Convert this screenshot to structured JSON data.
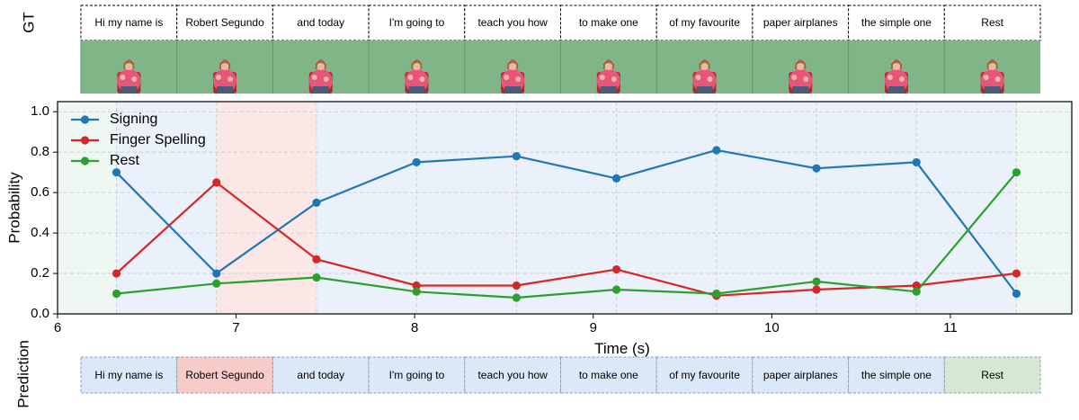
{
  "gt_label": "GT",
  "prediction_label": "Prediction",
  "segments": [
    "Hi my name is",
    "Robert Segundo",
    "and today",
    "I'm going to",
    "teach you how",
    "to make one",
    "of my favourite",
    "paper airplanes",
    "the simple one",
    "Rest"
  ],
  "predicted_classes": [
    "signing",
    "fingerspelling",
    "signing",
    "signing",
    "signing",
    "signing",
    "signing",
    "signing",
    "signing",
    "rest"
  ],
  "colors": {
    "signing": "#1f77b4",
    "fingerspelling": "#d62728",
    "rest": "#2ca02c",
    "pred_signing_fill": "#dae8f8",
    "pred_fingerspelling_fill": "#f7cbc7",
    "pred_rest_fill": "#d5e8d4",
    "bg_signing": "#eaf1fb",
    "bg_fingerspelling": "#fbe7e5",
    "bg_rest": "#eef7f2",
    "video_green": "#76b07d",
    "shirt_pink": "#e8557a"
  },
  "chart_data": {
    "type": "line",
    "title": "",
    "xlabel": "Time (s)",
    "ylabel": "Probability",
    "xlim": [
      6.0,
      11.68
    ],
    "ylim": [
      0.0,
      1.05
    ],
    "xticks": [
      6,
      7,
      8,
      9,
      10,
      11
    ],
    "yticks": [
      0.0,
      0.2,
      0.4,
      0.6,
      0.8,
      1.0
    ],
    "xtick_labels": [
      "6",
      "7",
      "8",
      "9",
      "10",
      "11"
    ],
    "ytick_labels": [
      "0.0",
      "0.2",
      "0.4",
      "0.6",
      "0.8",
      "1.0"
    ],
    "grid": true,
    "legend_position": "top-left",
    "x": [
      6.33,
      6.89,
      7.45,
      8.01,
      8.57,
      9.13,
      9.69,
      10.25,
      10.81,
      11.37
    ],
    "series": [
      {
        "name": "Signing",
        "key": "signing",
        "values": [
          0.7,
          0.2,
          0.55,
          0.75,
          0.78,
          0.67,
          0.81,
          0.72,
          0.75,
          0.1
        ]
      },
      {
        "name": "Finger Spelling",
        "key": "fingerspelling",
        "values": [
          0.2,
          0.65,
          0.27,
          0.14,
          0.14,
          0.22,
          0.09,
          0.12,
          0.14,
          0.2
        ]
      },
      {
        "name": "Rest",
        "key": "rest",
        "values": [
          0.1,
          0.15,
          0.18,
          0.11,
          0.08,
          0.12,
          0.1,
          0.16,
          0.11,
          0.7
        ]
      }
    ],
    "background_regions": [
      {
        "start": 6.0,
        "end": 6.33,
        "class": "rest"
      },
      {
        "start": 6.33,
        "end": 6.89,
        "class": "signing"
      },
      {
        "start": 6.89,
        "end": 7.45,
        "class": "fingerspelling"
      },
      {
        "start": 7.45,
        "end": 11.37,
        "class": "signing"
      },
      {
        "start": 11.37,
        "end": 11.68,
        "class": "rest"
      }
    ]
  }
}
